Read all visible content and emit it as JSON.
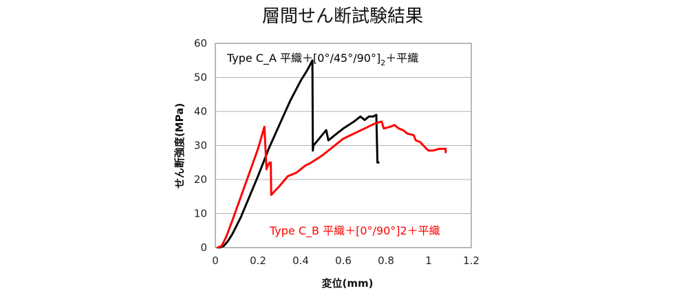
{
  "chart_data": {
    "type": "line",
    "title": "層間せん断試験結果",
    "xlabel": "変位(mm)",
    "ylabel": "せん断強度(MPa)",
    "xlim": [
      0,
      1.2
    ],
    "ylim": [
      0,
      60
    ],
    "xticks": [
      "0",
      "0.2",
      "0.4",
      "0.6",
      "0.8",
      "1",
      "1.2"
    ],
    "yticks": [
      "0",
      "10",
      "20",
      "30",
      "40",
      "50",
      "60"
    ],
    "grid": "horizontal",
    "annotations": [
      {
        "text": "Type C_A 平織＋[0°/45°/90°]",
        "subscript": "2",
        "suffix": "＋平織",
        "color": "#000000"
      },
      {
        "text": "Type C_B 平織＋[0°/90°]2＋平織",
        "color": "#ff0000"
      }
    ],
    "series": [
      {
        "color": "#000000",
        "x": [
          0.02,
          0.04,
          0.06,
          0.08,
          0.12,
          0.16,
          0.2,
          0.25,
          0.3,
          0.35,
          0.4,
          0.43,
          0.455,
          0.457,
          0.46,
          0.48,
          0.5,
          0.52,
          0.53,
          0.54,
          0.56,
          0.6,
          0.65,
          0.68,
          0.7,
          0.72,
          0.74,
          0.755,
          0.76,
          0.765
        ],
        "y": [
          0,
          0.5,
          2,
          4,
          9,
          15,
          21,
          29,
          36,
          43,
          49,
          52,
          55,
          28.5,
          30,
          31.5,
          33,
          34.5,
          31.5,
          32,
          33,
          35,
          37,
          38.5,
          37.5,
          38.5,
          38.5,
          39,
          25,
          25
        ]
      },
      {
        "color": "#ff0000",
        "x": [
          0.01,
          0.03,
          0.05,
          0.08,
          0.12,
          0.16,
          0.2,
          0.23,
          0.24,
          0.245,
          0.255,
          0.26,
          0.262,
          0.3,
          0.34,
          0.36,
          0.38,
          0.42,
          0.45,
          0.5,
          0.55,
          0.6,
          0.65,
          0.7,
          0.75,
          0.78,
          0.79,
          0.82,
          0.84,
          0.86,
          0.88,
          0.9,
          0.93,
          0.94,
          0.96,
          0.99,
          1.0,
          1.02,
          1.05,
          1.08,
          1.08
        ],
        "y": [
          0,
          0.5,
          3,
          8,
          15,
          22,
          29,
          35.5,
          23,
          24,
          25,
          25,
          15.5,
          18,
          21,
          21.5,
          22,
          24,
          25,
          27,
          29.5,
          32,
          33.5,
          35,
          36.5,
          37,
          35,
          35.5,
          36,
          35,
          34.5,
          33.5,
          33,
          31.5,
          31,
          29,
          28.5,
          28.5,
          29,
          29,
          28
        ]
      }
    ]
  }
}
